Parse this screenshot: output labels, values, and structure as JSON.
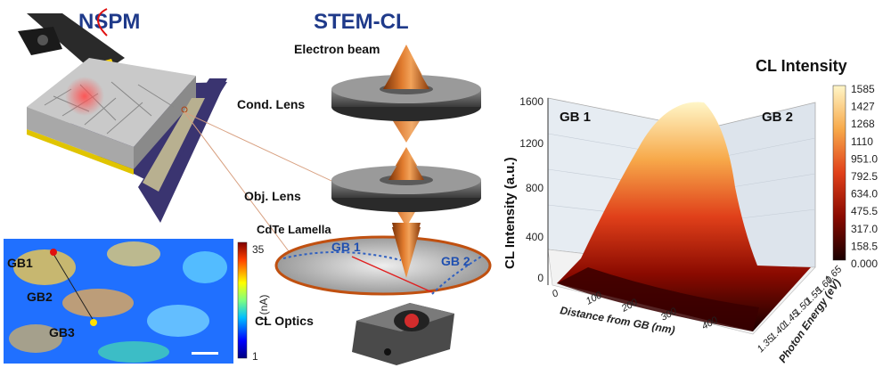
{
  "nspm": {
    "title": "NSPM",
    "map": {
      "labels": [
        "GB1",
        "GB2",
        "GB3"
      ],
      "colorbar": {
        "max": "35",
        "min": "1",
        "unit": "I (nA)"
      }
    }
  },
  "stem": {
    "title": "STEM-CL",
    "electron_beam": "Electron beam",
    "cond_lens": "Cond. Lens",
    "obj_lens": "Obj. Lens",
    "lamella": "CdTe Lamella",
    "gb1": "GB 1",
    "gb2": "GB 2",
    "optics": "CL Optics"
  },
  "cl_plot": {
    "colorbar_title": "CL Intensity",
    "colorbar_ticks": [
      "1585",
      "1427",
      "1268",
      "1110",
      "951.0",
      "792.5",
      "634.0",
      "475.5",
      "317.0",
      "158.5",
      "0.000"
    ],
    "z_label": "CL Intensity (a.u.)",
    "z_ticks": [
      "1600",
      "1200",
      "800",
      "400",
      "0"
    ],
    "x_label": "Distance from GB (nm)",
    "x_ticks": [
      "0",
      "100",
      "200",
      "300",
      "400"
    ],
    "y_label": "Photon Energy (eV)",
    "y_ticks": [
      "1.65",
      "1.60",
      "1.55",
      "1.50",
      "1.45",
      "1.40",
      "1.35"
    ],
    "gb1": "GB 1",
    "gb2": "GB 2",
    "colors": {
      "high": "#fff2b0",
      "mid": "#e05a1a",
      "low": "#2a0000"
    }
  }
}
